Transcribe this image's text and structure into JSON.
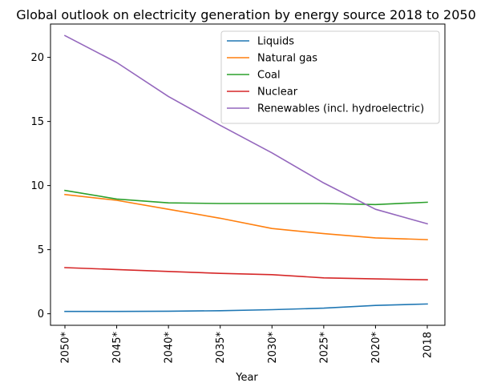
{
  "chart_data": {
    "type": "line",
    "title": "Global outlook on electricity generation by energy source 2018 to 2050",
    "xlabel": "Year",
    "ylabel": "",
    "categories": [
      "2050*",
      "2045*",
      "2040*",
      "2035*",
      "2030*",
      "2025*",
      "2020*",
      "2018"
    ],
    "ylim": [
      -0.9,
      22.6
    ],
    "yticks": [
      0,
      5,
      10,
      15,
      20
    ],
    "grid": false,
    "legend_position": "top-right",
    "series": [
      {
        "name": "Liquids",
        "color": "#1f77b4",
        "values": [
          0.18,
          0.18,
          0.2,
          0.24,
          0.32,
          0.44,
          0.65,
          0.76
        ]
      },
      {
        "name": "Natural gas",
        "color": "#ff7f0e",
        "values": [
          9.3,
          8.85,
          8.15,
          7.45,
          6.65,
          6.25,
          5.92,
          5.78
        ]
      },
      {
        "name": "Coal",
        "color": "#2ca02c",
        "values": [
          9.62,
          8.95,
          8.65,
          8.6,
          8.6,
          8.6,
          8.52,
          8.7
        ]
      },
      {
        "name": "Nuclear",
        "color": "#d62728",
        "values": [
          3.6,
          3.45,
          3.3,
          3.15,
          3.05,
          2.8,
          2.72,
          2.65
        ]
      },
      {
        "name": "Renewables (incl. hydroelectric)",
        "color": "#9467bd",
        "values": [
          21.7,
          19.6,
          16.95,
          14.7,
          12.55,
          10.2,
          8.15,
          7.02
        ]
      }
    ]
  }
}
